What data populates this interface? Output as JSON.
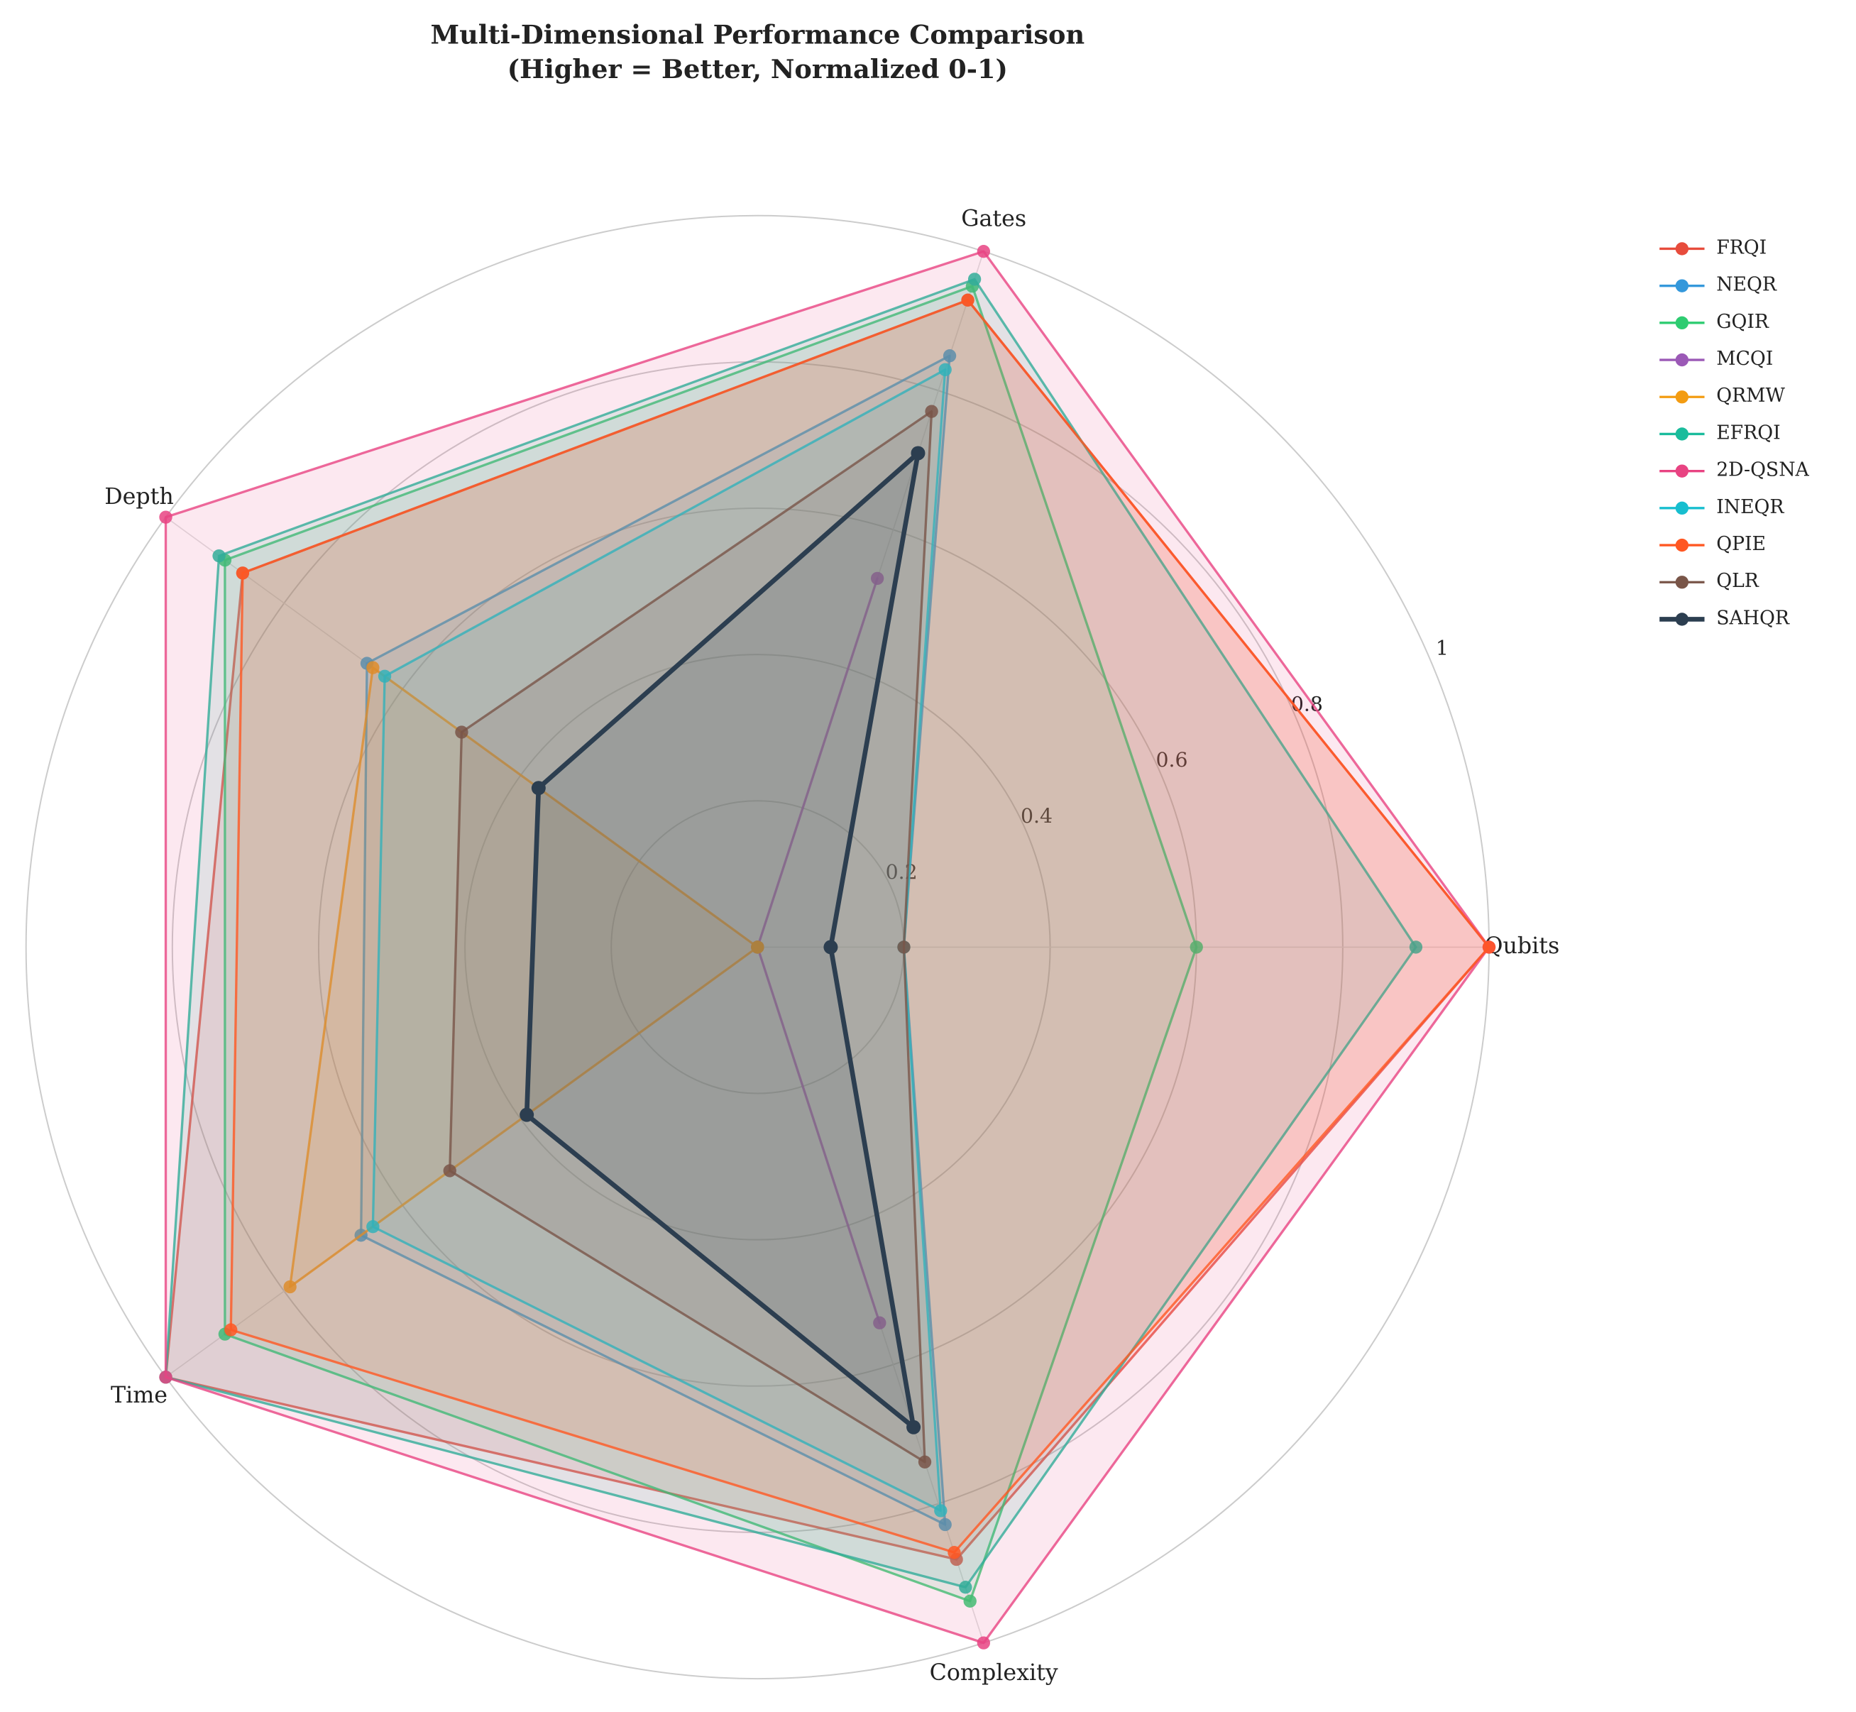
{
  "chart_data": {
    "type": "radar",
    "title": "Multi-Dimensional Performance Comparison",
    "subtitle": "(Higher = Better, Normalized 0-1)",
    "categories": [
      "Qubits",
      "Gates",
      "Depth",
      "Time",
      "Complexity"
    ],
    "ylim": [
      0,
      1
    ],
    "yticks": [
      0.2,
      0.4,
      0.6,
      0.8,
      1.0
    ],
    "grid": true,
    "legend": "upper right",
    "series": [
      {
        "name": "FRQI",
        "color": "#e74c3c",
        "values": [
          1.0,
          0.93,
          0.87,
          1.0,
          0.88
        ]
      },
      {
        "name": "NEQR",
        "color": "#3498db",
        "values": [
          0.2,
          0.85,
          0.66,
          0.67,
          0.83
        ]
      },
      {
        "name": "GQIR",
        "color": "#2ecc71",
        "values": [
          0.6,
          0.95,
          0.9,
          0.9,
          0.94
        ]
      },
      {
        "name": "MCQI",
        "color": "#9b59b6",
        "values": [
          0,
          0.53,
          0,
          0,
          0.54
        ]
      },
      {
        "name": "QRMW",
        "color": "#f39c12",
        "values": [
          0,
          0,
          0.65,
          0.79,
          0
        ]
      },
      {
        "name": "EFRQI",
        "color": "#1abc9c",
        "values": [
          0.9,
          0.96,
          0.91,
          1.0,
          0.92
        ]
      },
      {
        "name": "2D-QSNA",
        "color": "#e84382",
        "values": [
          1.0,
          1.0,
          1.0,
          1.0,
          1.0
        ]
      },
      {
        "name": "INEQR",
        "color": "#17becf",
        "values": [
          0.2,
          0.83,
          0.63,
          0.65,
          0.81
        ]
      },
      {
        "name": "QPIE",
        "color": "#ff5722",
        "values": [
          1.0,
          0.93,
          0.87,
          0.89,
          0.87
        ]
      },
      {
        "name": "QLR",
        "color": "#795548",
        "values": [
          0.2,
          0.77,
          0.5,
          0.52,
          0.74
        ]
      },
      {
        "name": "SAHQR",
        "color": "#2c3e50",
        "values": [
          0.1,
          0.71,
          0.37,
          0.39,
          0.69
        ]
      }
    ]
  }
}
